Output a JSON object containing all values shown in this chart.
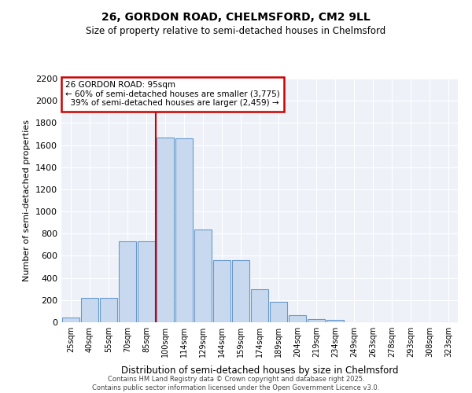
{
  "title1": "26, GORDON ROAD, CHELMSFORD, CM2 9LL",
  "title2": "Size of property relative to semi-detached houses in Chelmsford",
  "xlabel": "Distribution of semi-detached houses by size in Chelmsford",
  "ylabel": "Number of semi-detached properties",
  "bar_color": "#c8d9ef",
  "bar_edge_color": "#6699cc",
  "annotation_box_color": "#cc0000",
  "vline_color": "#cc0000",
  "background_color": "#eef2f8",
  "grid_color": "#ffffff",
  "categories": [
    "25sqm",
    "40sqm",
    "55sqm",
    "70sqm",
    "85sqm",
    "100sqm",
    "114sqm",
    "129sqm",
    "144sqm",
    "159sqm",
    "174sqm",
    "189sqm",
    "204sqm",
    "219sqm",
    "234sqm",
    "249sqm",
    "263sqm",
    "278sqm",
    "293sqm",
    "308sqm",
    "323sqm"
  ],
  "values": [
    40,
    220,
    220,
    730,
    730,
    1670,
    1660,
    840,
    560,
    560,
    300,
    185,
    65,
    30,
    20,
    0,
    0,
    0,
    0,
    0,
    0
  ],
  "property_size_label": "26 GORDON ROAD: 95sqm",
  "smaller_pct": 60,
  "smaller_count": 3775,
  "larger_pct": 39,
  "larger_count": 2459,
  "vline_x_idx": 5.5,
  "ylim": [
    0,
    2200
  ],
  "yticks": [
    0,
    200,
    400,
    600,
    800,
    1000,
    1200,
    1400,
    1600,
    1800,
    2000,
    2200
  ],
  "footer1": "Contains HM Land Registry data © Crown copyright and database right 2025.",
  "footer2": "Contains public sector information licensed under the Open Government Licence v3.0."
}
